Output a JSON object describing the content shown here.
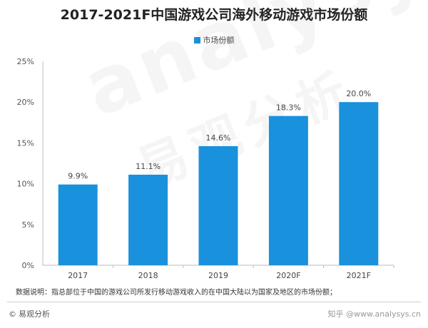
{
  "chart_data": {
    "type": "bar",
    "title": "2017-2021F中国游戏公司海外移动游戏市场份额",
    "categories": [
      "2017",
      "2018",
      "2019",
      "2020F",
      "2021F"
    ],
    "series": [
      {
        "name": "市场份额",
        "values": [
          9.9,
          11.1,
          14.6,
          18.3,
          20.0
        ]
      }
    ],
    "value_labels": [
      "9.9%",
      "11.1%",
      "14.6%",
      "18.3%",
      "20.0%"
    ],
    "y_ticks": [
      "0%",
      "5%",
      "10%",
      "15%",
      "20%",
      "25%"
    ],
    "ylim": [
      0,
      25
    ],
    "xlabel": "",
    "ylabel": "",
    "legend_position": "top",
    "grid": false,
    "color": "#1a91dc"
  },
  "note": "数据说明：指总部位于中国的游戏公司所发行移动游戏收入的在中国大陆以为国家及地区的市场份额；",
  "footer": {
    "copyright": "©",
    "brand": "易观分析",
    "watermark_right": "知乎 @www.analysys.cn"
  },
  "watermark": {
    "text": "analysys",
    "subtext": "易观分析"
  }
}
